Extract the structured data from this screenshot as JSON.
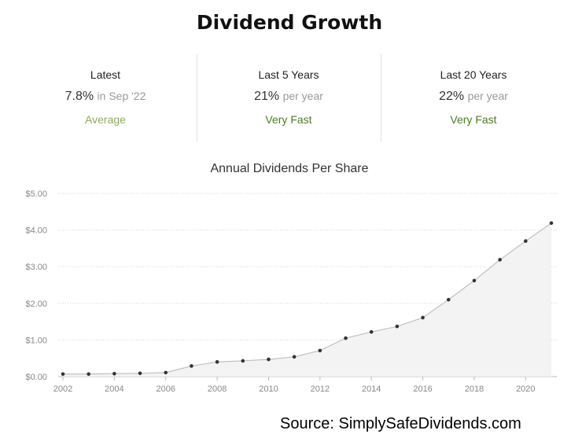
{
  "header": {
    "title": "Dividend Growth"
  },
  "stats": [
    {
      "label": "Latest",
      "value": "7.8%",
      "sub": "in Sep '22",
      "rating": "Average",
      "rating_color": "#8dab5a"
    },
    {
      "label": "Last 5 Years",
      "value": "21%",
      "sub": "per year",
      "rating": "Very Fast",
      "rating_color": "#4c7c22"
    },
    {
      "label": "Last 20 Years",
      "value": "22%",
      "sub": "per year",
      "rating": "Very Fast",
      "rating_color": "#4c7c22"
    }
  ],
  "chart_data": {
    "type": "area",
    "title": "Annual Dividends Per Share",
    "xlabel": "",
    "ylabel": "",
    "x": [
      2002,
      2003,
      2004,
      2005,
      2006,
      2007,
      2008,
      2009,
      2010,
      2011,
      2012,
      2013,
      2014,
      2015,
      2016,
      2017,
      2018,
      2019,
      2020,
      2021
    ],
    "series": [
      {
        "values": [
          0.07,
          0.07,
          0.08,
          0.09,
          0.11,
          0.29,
          0.4,
          0.43,
          0.47,
          0.54,
          0.71,
          1.05,
          1.22,
          1.37,
          1.61,
          2.1,
          2.62,
          3.19,
          3.7,
          4.19
        ]
      }
    ],
    "xlim": [
      2002,
      2021
    ],
    "ylim": [
      0,
      5
    ],
    "xticks": [
      2002,
      2004,
      2006,
      2008,
      2010,
      2012,
      2014,
      2016,
      2018,
      2020
    ],
    "yticks": [
      0,
      1,
      2,
      3,
      4,
      5
    ],
    "ytick_labels": [
      "$0.00",
      "$1.00",
      "$2.00",
      "$3.00",
      "$4.00",
      "$5.00"
    ],
    "grid": true,
    "line_color": "#c0c0c0",
    "fill_color": "#f3f3f3",
    "marker_color": "#333333"
  },
  "footer": {
    "source": "Source: SimplySafeDividends.com"
  }
}
